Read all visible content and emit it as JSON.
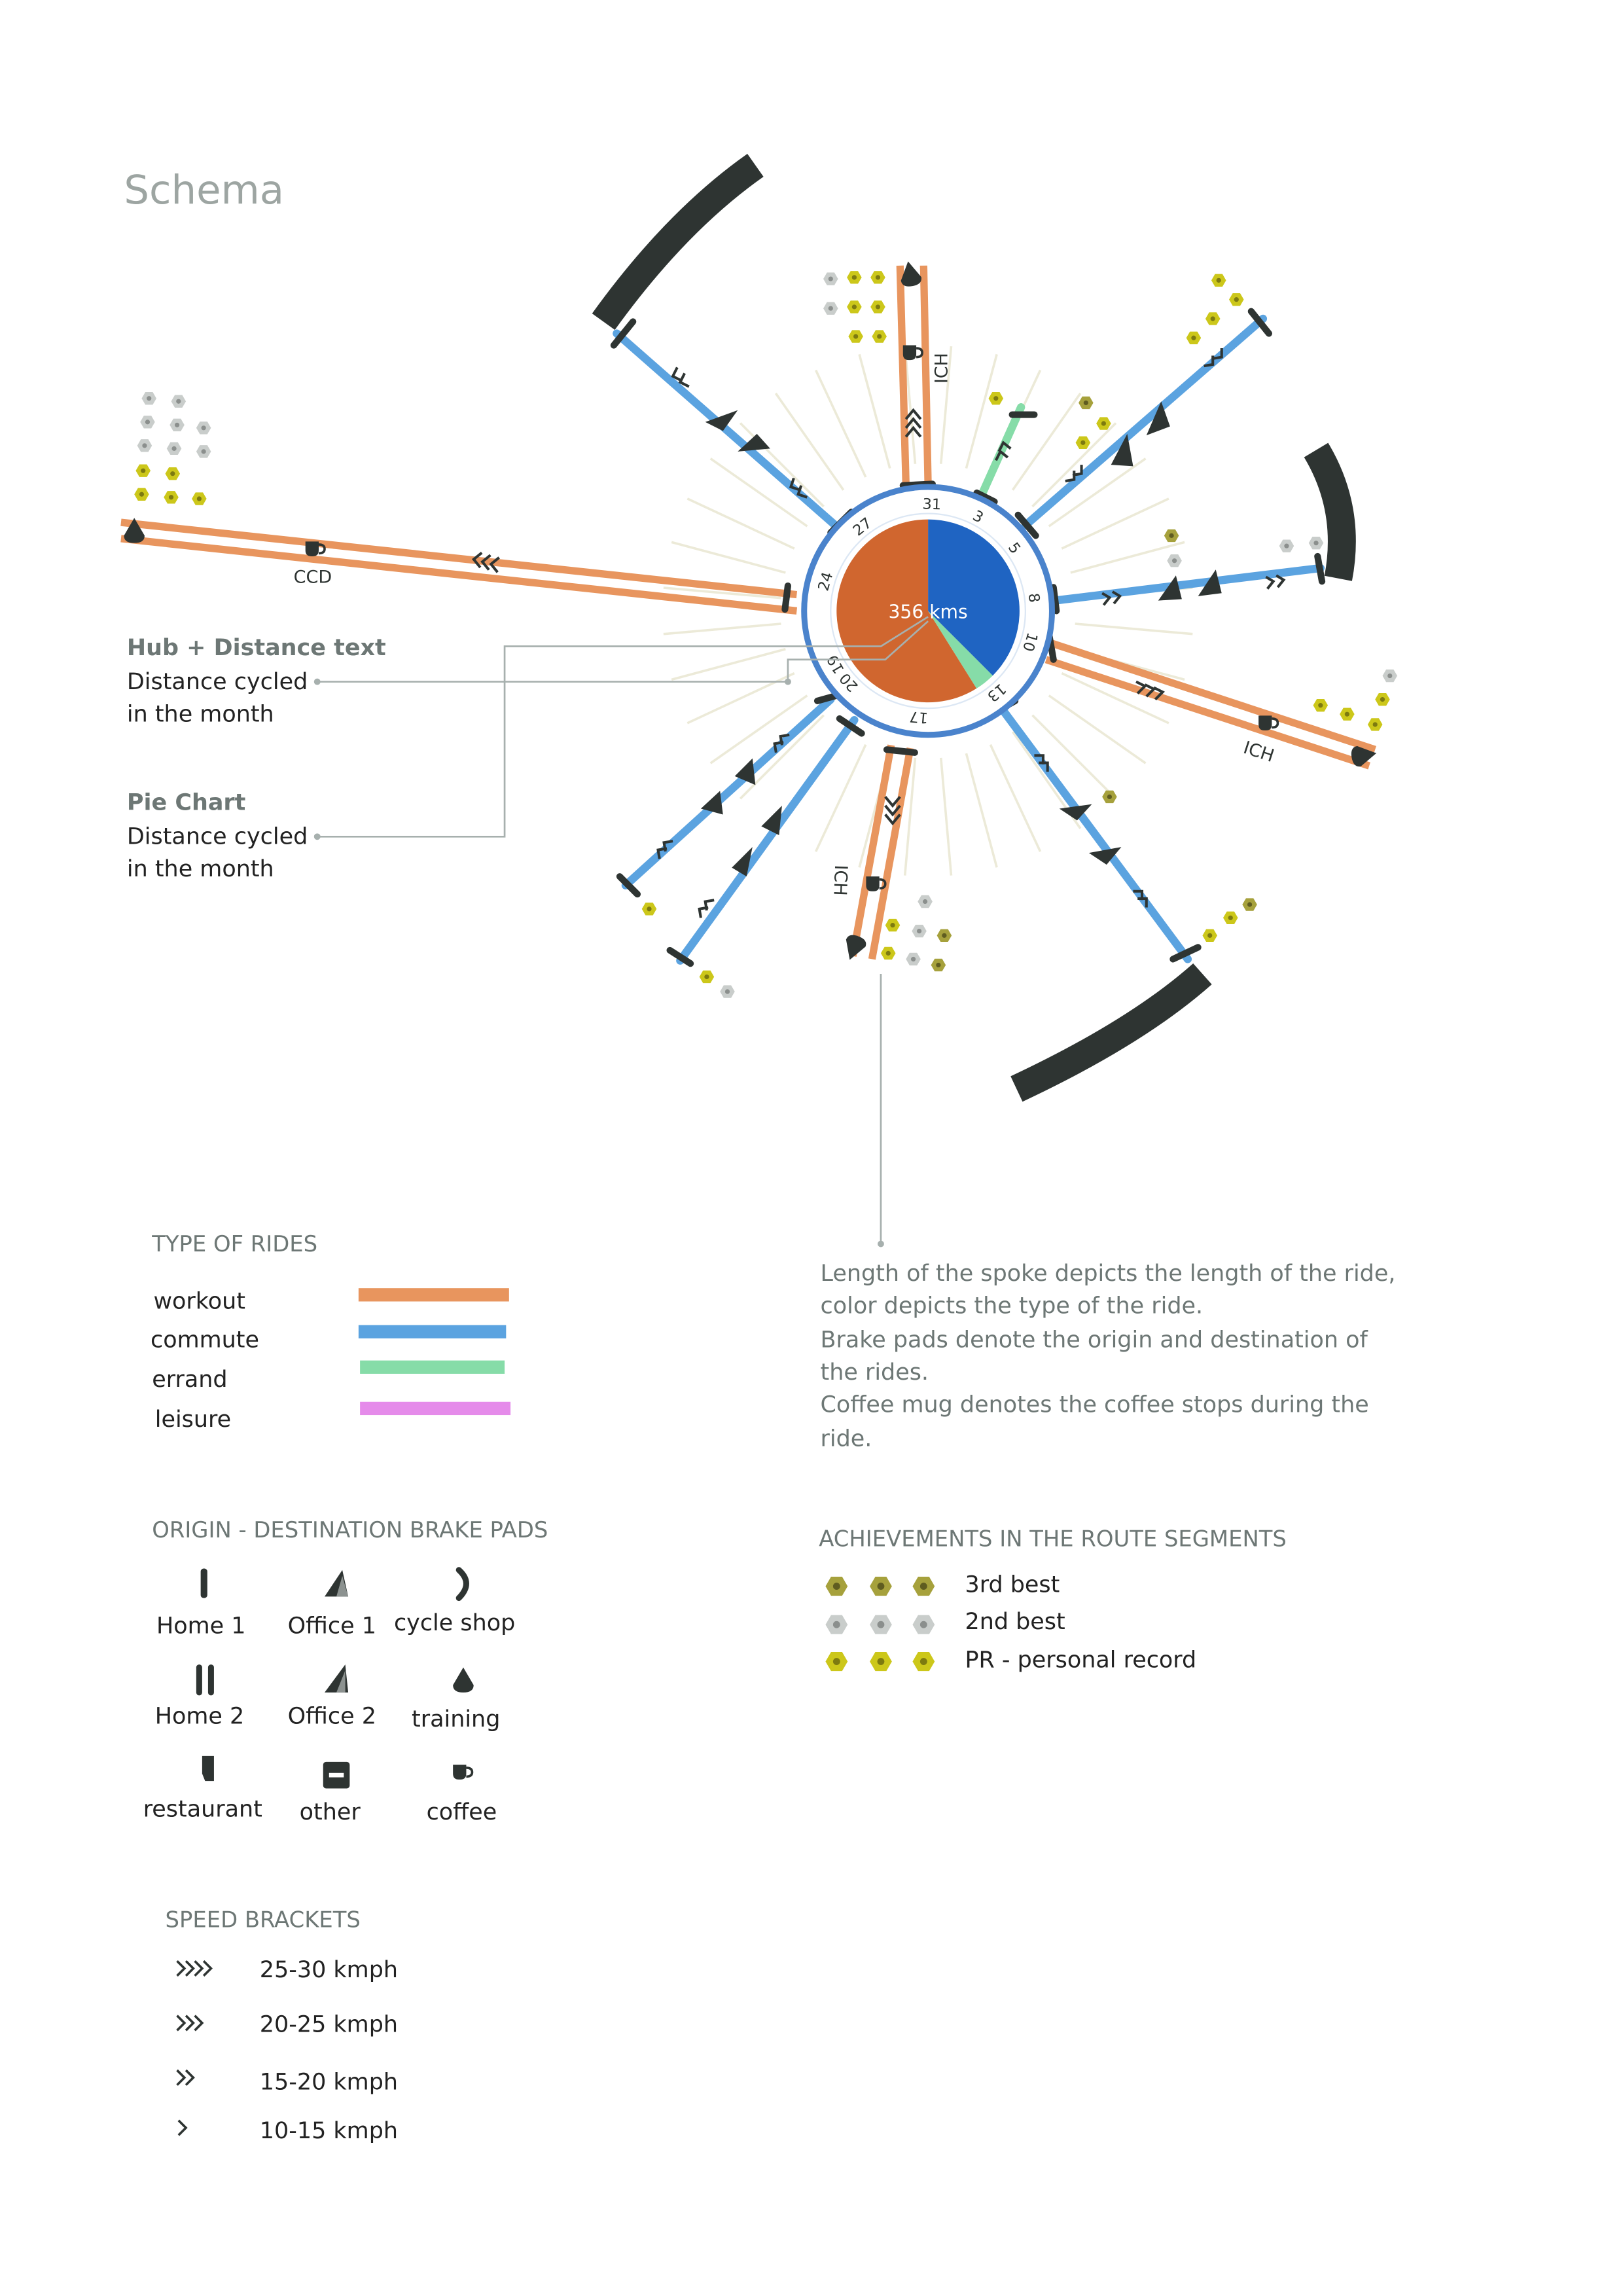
{
  "title": "Schema",
  "hub": {
    "distance_text": "356 kms",
    "day_labels": [
      "31",
      "3",
      "5",
      "8",
      "10",
      "13",
      "17",
      "20",
      "19",
      "24",
      "27"
    ]
  },
  "spoke_labels": {
    "ccd": "CCD",
    "ich_top": "ICH",
    "ich_right": "ICH",
    "ich_bottom": "ICH"
  },
  "callouts": {
    "hub": {
      "heading": "Hub + Distance text",
      "line1": "Distance cycled",
      "line2": "in the month"
    },
    "pie": {
      "heading": "Pie Chart",
      "line1": "Distance cycled",
      "line2": "in the month"
    }
  },
  "description": [
    "Length of the spoke depicts the length of the ride,",
    "color depicts the type of the ride.",
    "Brake pads denote the origin and destination of",
    "the rides.",
    "Coffee mug denotes the coffee stops during the",
    "ride."
  ],
  "legend_rides": {
    "heading": "TYPE OF RIDES",
    "items": [
      {
        "label": "workout",
        "color": "#E8955E"
      },
      {
        "label": "commute",
        "color": "#5BA3E0"
      },
      {
        "label": "errand",
        "color": "#86DCA8"
      },
      {
        "label": "leisure",
        "color": "#E58BEA"
      }
    ]
  },
  "legend_pads": {
    "heading": "ORIGIN - DESTINATION BRAKE PADS",
    "items": [
      {
        "label": "Home 1",
        "icon": "single-bar-icon"
      },
      {
        "label": "Office 1",
        "icon": "wedge-icon"
      },
      {
        "label": "cycle shop",
        "icon": "crescent-icon"
      },
      {
        "label": "Home 2",
        "icon": "double-bar-icon"
      },
      {
        "label": "Office 2",
        "icon": "wedge-icon"
      },
      {
        "label": "training",
        "icon": "drop-icon"
      },
      {
        "label": "restaurant",
        "icon": "notched-bar-icon"
      },
      {
        "label": "other",
        "icon": "square-dash-icon"
      },
      {
        "label": "coffee",
        "icon": "coffee-mug-icon"
      }
    ]
  },
  "legend_speed": {
    "heading": "SPEED BRACKETS",
    "items": [
      {
        "label": "25-30 kmph",
        "chevrons": 4
      },
      {
        "label": "20-25 kmph",
        "chevrons": 3
      },
      {
        "label": "15-20 kmph",
        "chevrons": 2
      },
      {
        "label": "10-15 kmph",
        "chevrons": 1
      }
    ]
  },
  "legend_achievements": {
    "heading": "ACHIEVEMENTS IN THE ROUTE SEGMENTS",
    "items": [
      {
        "label": "3rd best",
        "color": "#A6A13C"
      },
      {
        "label": "2nd best",
        "color": "#C9CDCB"
      },
      {
        "label": "PR - personal record",
        "color": "#CCC71A"
      }
    ]
  },
  "colors": {
    "workout": "#E8955E",
    "commute": "#5BA3E0",
    "errand": "#86DCA8",
    "pie_orange": "#D0662F",
    "pie_blue": "#1F64C2",
    "dark": "#2E3432",
    "muted_text": "#6D7775"
  }
}
